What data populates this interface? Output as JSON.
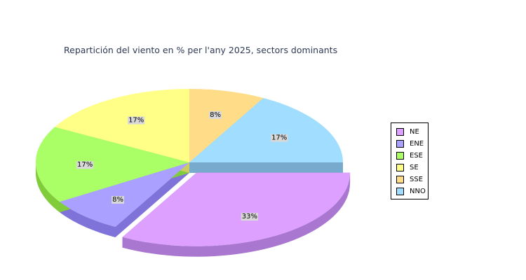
{
  "chart_data": {
    "type": "pie",
    "title": "Repartición del viento en % per l'any 2025, sectors dominants",
    "legend_position": "right",
    "slices": [
      {
        "label": "NE",
        "value": 33,
        "display": "33%",
        "color": "#dda0ff",
        "side": "#aa77d0",
        "exploded": true
      },
      {
        "label": "ENE",
        "value": 8,
        "display": "8%",
        "color": "#aaa0ff",
        "side": "#7f72d8",
        "exploded": false
      },
      {
        "label": "ESE",
        "value": 17,
        "display": "17%",
        "color": "#aaff66",
        "side": "#80cc3a",
        "exploded": false
      },
      {
        "label": "SE",
        "value": 17,
        "display": "17%",
        "color": "#ffff88",
        "side": "#cccc60",
        "exploded": false
      },
      {
        "label": "SSE",
        "value": 8,
        "display": "8%",
        "color": "#ffdd88",
        "side": "#ccaa60",
        "exploded": false
      },
      {
        "label": "NNO",
        "value": 17,
        "display": "17%",
        "color": "#a0ddff",
        "side": "#77aacc",
        "exploded": false
      }
    ]
  }
}
